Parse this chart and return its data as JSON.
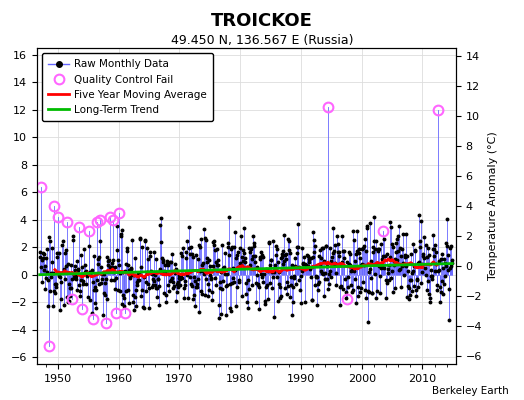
{
  "title": "TROICKOE",
  "subtitle": "49.450 N, 136.567 E (Russia)",
  "attribution": "Berkeley Earth",
  "ylabel_right": "Temperature Anomaly (°C)",
  "xlim": [
    1946.5,
    2015.5
  ],
  "ylim": [
    -6.5,
    16.5
  ],
  "ylim_right": [
    -6.5,
    14.5
  ],
  "xticks": [
    1950,
    1960,
    1970,
    1980,
    1990,
    2000,
    2010
  ],
  "yticks_left": [
    -6,
    -4,
    -2,
    0,
    2,
    4,
    6,
    8,
    10,
    12,
    14,
    16
  ],
  "yticks_right": [
    -6,
    -4,
    -2,
    0,
    2,
    4,
    6,
    8,
    10,
    12,
    14
  ],
  "colors": {
    "raw_line": "#6666ff",
    "raw_marker": "#000000",
    "qc_fail": "#ff66ff",
    "moving_avg": "#ff0000",
    "trend": "#00bb00",
    "background": "#ffffff",
    "plot_bg": "#ffffff",
    "grid": "#dddddd"
  },
  "start_year": 1947,
  "end_year": 2014,
  "seed": 137
}
